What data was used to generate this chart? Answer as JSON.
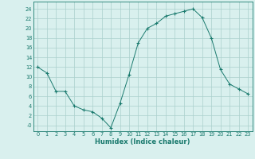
{
  "x": [
    0,
    1,
    2,
    3,
    4,
    5,
    6,
    7,
    8,
    9,
    10,
    11,
    12,
    13,
    14,
    15,
    16,
    17,
    18,
    19,
    20,
    21,
    22,
    23
  ],
  "y": [
    12.0,
    10.8,
    7.0,
    7.0,
    4.0,
    3.2,
    2.8,
    1.5,
    -0.5,
    4.5,
    10.5,
    17.0,
    20.0,
    21.0,
    22.5,
    23.0,
    23.5,
    24.0,
    22.2,
    18.0,
    11.5,
    8.5,
    7.5,
    6.5
  ],
  "line_color": "#1a7a6e",
  "marker": "+",
  "marker_size": 3.0,
  "bg_color": "#d9f0ee",
  "grid_color": "#aacfcc",
  "axis_color": "#1a7a6e",
  "xlabel": "Humidex (Indice chaleur)",
  "xlabel_fontsize": 6.0,
  "ytick_labels": [
    "-0",
    "2",
    "4",
    "6",
    "8",
    "10",
    "12",
    "14",
    "16",
    "18",
    "20",
    "22",
    "24"
  ],
  "ytick_vals": [
    0,
    2,
    4,
    6,
    8,
    10,
    12,
    14,
    16,
    18,
    20,
    22,
    24
  ],
  "ylim": [
    -1.2,
    25.5
  ],
  "xlim": [
    -0.5,
    23.5
  ],
  "linewidth": 0.7,
  "tick_fontsize": 4.8
}
